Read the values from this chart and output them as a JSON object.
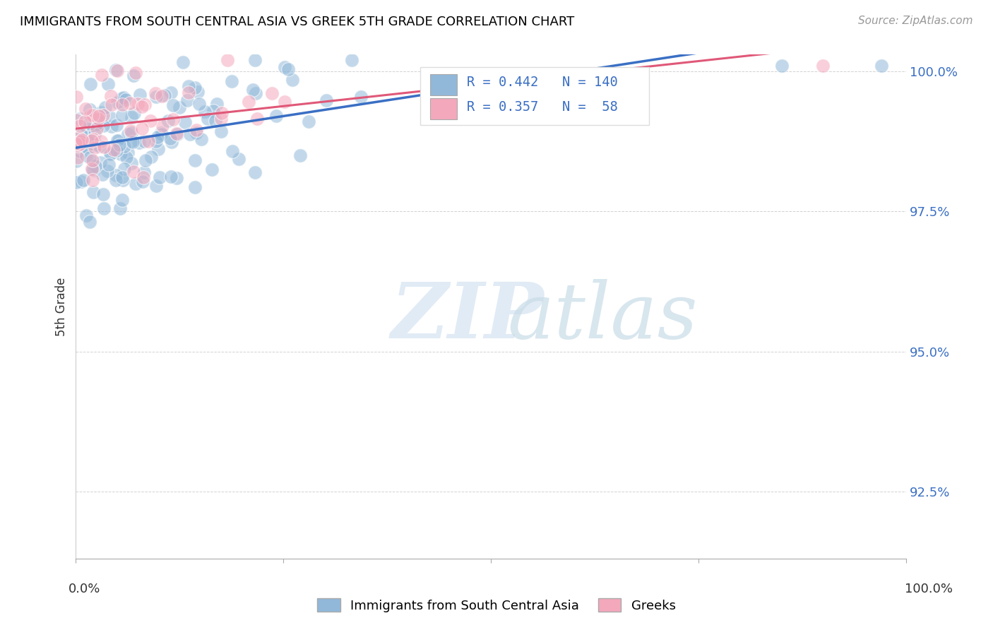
{
  "title": "IMMIGRANTS FROM SOUTH CENTRAL ASIA VS GREEK 5TH GRADE CORRELATION CHART",
  "source": "Source: ZipAtlas.com",
  "ylabel": "5th Grade",
  "ytick_labels": [
    "92.5%",
    "95.0%",
    "97.5%",
    "100.0%"
  ],
  "ytick_values": [
    0.925,
    0.95,
    0.975,
    1.0
  ],
  "xlim": [
    0.0,
    1.0
  ],
  "ylim": [
    0.913,
    1.003
  ],
  "legend_blue_label": "Immigrants from South Central Asia",
  "legend_pink_label": "Greeks",
  "r_blue": 0.442,
  "n_blue": 140,
  "r_pink": 0.357,
  "n_pink": 58,
  "blue_color": "#91b8d9",
  "pink_color": "#f4a8bc",
  "blue_line_color": "#3a6fc4",
  "pink_line_color": "#e05878",
  "watermark_zip": "ZIP",
  "watermark_atlas": "atlas",
  "title_fontsize": 13,
  "source_fontsize": 11,
  "tick_fontsize": 13,
  "ylabel_fontsize": 12
}
